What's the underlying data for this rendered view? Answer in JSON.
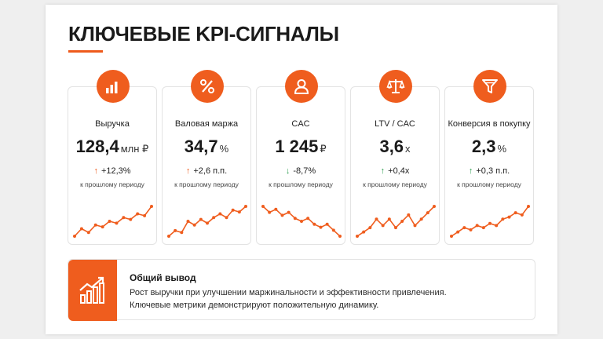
{
  "title": "КЛЮЧЕВЫЕ KPI-СИГНАЛЫ",
  "colors": {
    "accent": "#ef5d1e",
    "positive": "#2e9e4f"
  },
  "cards": [
    {
      "icon": "bar-chart-icon",
      "label": "Выручка",
      "value": "128,4",
      "unit": "млн ₽",
      "arrow": "↑",
      "direction": "up",
      "change": "+12,3%",
      "period": "к прошлому периоду",
      "trend": [
        2,
        4,
        3,
        5,
        4.5,
        6,
        5.5,
        7,
        6.5,
        8,
        7.5,
        10
      ]
    },
    {
      "icon": "percent-icon",
      "label": "Валовая маржа",
      "value": "34,7",
      "unit": "%",
      "arrow": "↑",
      "direction": "up",
      "change": "+2,6 п.п.",
      "period": "к прошлому периоду",
      "trend": [
        2,
        3.5,
        3,
        6,
        5,
        6.5,
        5.5,
        7,
        8,
        7,
        9,
        8.5,
        10
      ]
    },
    {
      "icon": "user-icon",
      "label": "CAC",
      "value": "1 245",
      "unit": "₽",
      "arrow": "↓",
      "direction": "down",
      "change": "-8,7%",
      "period": "к прошлому периоду",
      "trend": [
        9,
        8,
        8.5,
        7.5,
        8,
        7,
        6.5,
        7,
        6,
        5.5,
        6,
        5,
        4
      ]
    },
    {
      "icon": "scales-icon",
      "label": "LTV / CAC",
      "value": "3,6",
      "unit": "x",
      "arrow": "↑",
      "direction": "up-green",
      "change": "+0,4x",
      "period": "к прошлому периоду",
      "trend": [
        2,
        3,
        4,
        6,
        4.5,
        6,
        4,
        5.5,
        7,
        4.5,
        6,
        7.5,
        9
      ]
    },
    {
      "icon": "funnel-icon",
      "label": "Конверсия в покупку",
      "value": "2,3",
      "unit": "%",
      "arrow": "↑",
      "direction": "up-green",
      "change": "+0,3 п.п.",
      "period": "к прошлому периоду",
      "trend": [
        2,
        3,
        4,
        3.5,
        4.5,
        4,
        5,
        4.5,
        6,
        6.5,
        7.5,
        7,
        9
      ]
    }
  ],
  "summary": {
    "icon": "growth-chart-icon",
    "title": "Общий вывод",
    "line1": "Рост выручки при улучшении маржинальности и эффективности привлечения.",
    "line2": "Ключевые метрики демонстрируют положительную динамику."
  }
}
